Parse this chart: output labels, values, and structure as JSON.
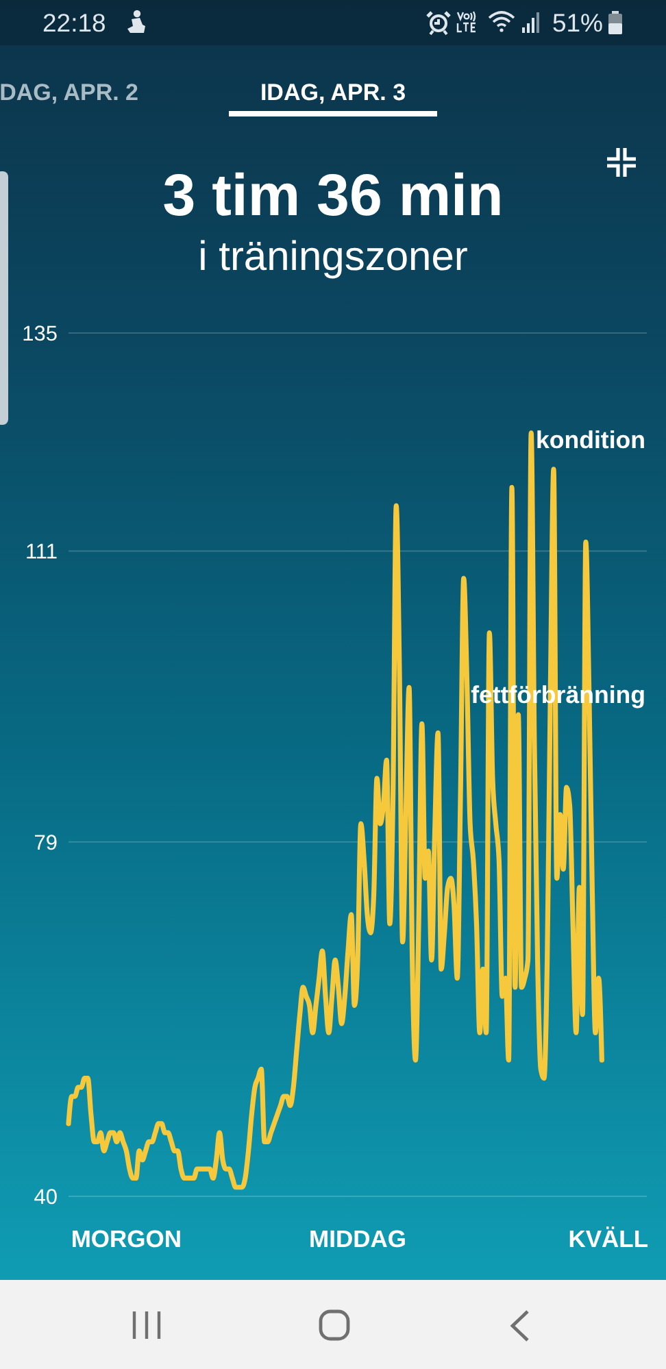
{
  "chart_data": {
    "type": "line",
    "title": "3 tim 36 min",
    "subtitle": "i träningszoner",
    "categories": [
      null,
      null,
      null,
      null,
      null,
      null,
      null,
      null,
      null,
      null,
      null,
      null,
      null,
      null,
      null,
      null,
      null,
      null,
      "MORGON",
      null,
      null,
      null,
      null,
      null,
      null,
      null,
      null,
      null,
      null,
      null,
      null,
      null,
      null,
      null,
      null,
      null,
      null,
      null,
      null,
      null,
      null,
      null,
      null,
      null,
      null,
      null,
      null,
      null,
      null,
      null,
      null,
      null,
      null,
      null,
      null,
      null,
      null,
      null,
      null,
      null,
      null,
      null,
      null,
      null,
      null,
      null,
      null,
      null,
      null,
      null,
      null,
      null,
      null,
      null,
      null,
      null,
      null,
      null,
      null,
      null,
      null,
      null,
      null,
      null,
      null,
      null,
      null,
      null,
      null,
      null,
      "MIDDAG",
      null,
      null,
      null,
      null,
      null,
      null,
      null,
      null,
      null,
      null,
      null,
      null,
      null,
      null,
      null,
      null,
      null,
      null,
      null,
      null,
      null,
      null,
      null,
      null,
      null,
      null,
      null,
      null,
      null,
      null,
      null,
      null,
      null,
      null,
      null,
      null,
      null,
      null,
      null,
      null,
      null,
      null,
      null,
      null,
      null,
      null,
      null,
      null,
      null,
      null,
      null,
      null,
      null,
      null,
      null,
      null,
      null,
      null,
      null,
      null,
      null,
      null,
      null,
      null,
      null,
      null,
      null,
      null,
      null,
      null,
      null,
      null,
      null,
      null,
      null,
      null,
      null,
      "KVÄLL",
      null,
      null,
      null,
      null,
      null,
      null,
      null,
      null,
      null,
      null,
      null,
      null
    ],
    "series": [
      {
        "color": "#f6c83c",
        "values": [
          48,
          51,
          51,
          52,
          52,
          53,
          53,
          49,
          46,
          46,
          47,
          45,
          46,
          47,
          47,
          46,
          47,
          46,
          45,
          43,
          42,
          42,
          45,
          44,
          45,
          46,
          46,
          47,
          48,
          48,
          47,
          47,
          46,
          45,
          45,
          43,
          42,
          42,
          42,
          42,
          43,
          43,
          43,
          43,
          43,
          42,
          44,
          47,
          44,
          43,
          43,
          42,
          41,
          41,
          41,
          42,
          45,
          49,
          52,
          53,
          54,
          46,
          46,
          47,
          48,
          49,
          50,
          51,
          51,
          50,
          52,
          56,
          60,
          63,
          62,
          61,
          58,
          61,
          64,
          67,
          62,
          58,
          62,
          66,
          63,
          59,
          62,
          67,
          71,
          61,
          66,
          81,
          77,
          71,
          69,
          73,
          86,
          81,
          83,
          88,
          70,
          84,
          116,
          98,
          68,
          82,
          96,
          66,
          55,
          70,
          92,
          75,
          78,
          66,
          80,
          91,
          65,
          69,
          74,
          75,
          72,
          64,
          84,
          108,
          97,
          81,
          77,
          70,
          58,
          65,
          58,
          102,
          86,
          81,
          77,
          62,
          64,
          55,
          118,
          63,
          93,
          63,
          64,
          66,
          124,
          90,
          66,
          54,
          53,
          66,
          96,
          120,
          75,
          82,
          76,
          85,
          83,
          70,
          58,
          74,
          60,
          112,
          96,
          74,
          58,
          64,
          55,
          null,
          null,
          null,
          null,
          null,
          null,
          null,
          null,
          null,
          null,
          null,
          null,
          null,
          null
        ]
      }
    ],
    "ylim": [
      40,
      135
    ],
    "yticks": [
      40,
      79,
      111,
      135
    ],
    "grid": "y",
    "annotations": [
      "22:18",
      "51%",
      "DAG, APR. 2",
      "IDAG, APR. 3",
      "kondition",
      "fettförbränning"
    ]
  }
}
